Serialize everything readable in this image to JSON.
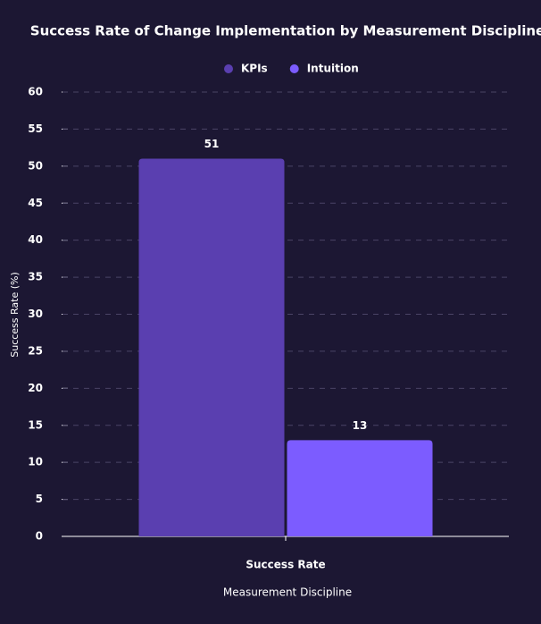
{
  "chart_data": {
    "type": "bar",
    "title": "Success Rate of Change Implementation by Measurement Discipline",
    "x_label": "Measurement Discipline",
    "y_label": "Success Rate (%)",
    "categories": [
      "Success Rate"
    ],
    "series": [
      {
        "name": "KPIs",
        "color": "#5a3fb0",
        "values": [
          51
        ]
      },
      {
        "name": "Intuition",
        "color": "#7c5cff",
        "values": [
          13
        ]
      }
    ],
    "ylim": [
      0,
      60
    ],
    "yticks": [
      0,
      5,
      10,
      15,
      20,
      25,
      30,
      35,
      40,
      45,
      50,
      55,
      60
    ],
    "grid": true,
    "legend": "top"
  }
}
